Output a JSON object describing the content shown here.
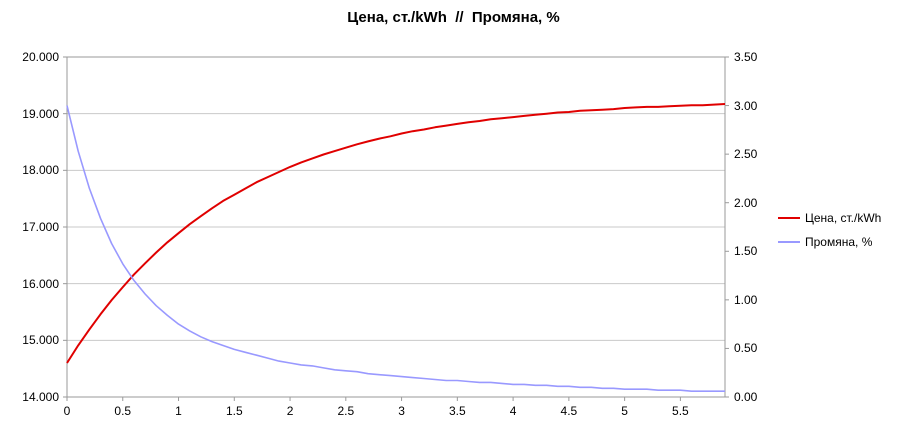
{
  "chart_data": {
    "type": "line",
    "title": "Цена, ст./kWh  //  Промяна, %",
    "grid": true,
    "legend_position": "right",
    "colors": {
      "grid": "#c9c9c9",
      "axis": "#9a9a9a",
      "background": "#ffffff",
      "text": "#000000"
    },
    "x": [
      0,
      0.1,
      0.2,
      0.3,
      0.4,
      0.5,
      0.6,
      0.7,
      0.8,
      0.9,
      1,
      1.1,
      1.2,
      1.3,
      1.4,
      1.5,
      1.6,
      1.7,
      1.8,
      1.9,
      2,
      2.1,
      2.2,
      2.3,
      2.4,
      2.5,
      2.6,
      2.7,
      2.8,
      2.9,
      3,
      3.1,
      3.2,
      3.3,
      3.4,
      3.5,
      3.6,
      3.7,
      3.8,
      3.9,
      4,
      4.1,
      4.2,
      4.3,
      4.4,
      4.5,
      4.6,
      4.7,
      4.8,
      4.9,
      5,
      5.1,
      5.2,
      5.3,
      5.4,
      5.5,
      5.6,
      5.7,
      5.8,
      5.9
    ],
    "series": [
      {
        "id": "price",
        "name": "Цена, ст./kWh",
        "axis": "left",
        "color": "#e00000",
        "values": [
          14.6,
          14.91,
          15.19,
          15.46,
          15.71,
          15.94,
          16.16,
          16.36,
          16.55,
          16.73,
          16.89,
          17.05,
          17.19,
          17.33,
          17.46,
          17.57,
          17.68,
          17.79,
          17.88,
          17.97,
          18.06,
          18.14,
          18.21,
          18.28,
          18.34,
          18.4,
          18.46,
          18.51,
          18.56,
          18.6,
          18.65,
          18.69,
          18.72,
          18.76,
          18.79,
          18.82,
          18.85,
          18.87,
          18.9,
          18.92,
          18.94,
          18.96,
          18.98,
          19.0,
          19.02,
          19.03,
          19.05,
          19.06,
          19.07,
          19.08,
          19.1,
          19.11,
          19.12,
          19.12,
          19.13,
          19.14,
          19.15,
          19.15,
          19.16,
          19.17
        ]
      },
      {
        "id": "change",
        "name": "Промяна, %",
        "axis": "right",
        "color": "#9999ff",
        "values": [
          3.0,
          2.53,
          2.15,
          1.84,
          1.58,
          1.37,
          1.2,
          1.06,
          0.94,
          0.84,
          0.75,
          0.68,
          0.62,
          0.57,
          0.53,
          0.49,
          0.46,
          0.43,
          0.4,
          0.37,
          0.35,
          0.33,
          0.32,
          0.3,
          0.28,
          0.27,
          0.26,
          0.24,
          0.23,
          0.22,
          0.21,
          0.2,
          0.19,
          0.18,
          0.17,
          0.17,
          0.16,
          0.15,
          0.15,
          0.14,
          0.13,
          0.13,
          0.12,
          0.12,
          0.11,
          0.11,
          0.1,
          0.1,
          0.09,
          0.09,
          0.08,
          0.08,
          0.08,
          0.07,
          0.07,
          0.07,
          0.06,
          0.06,
          0.06,
          0.06
        ]
      }
    ],
    "left_axis": {
      "min": 14,
      "max": 20,
      "ticks": [
        14,
        15,
        16,
        17,
        18,
        19,
        20
      ],
      "labels": [
        "14.000",
        "15.000",
        "16.000",
        "17.000",
        "18.000",
        "19.000",
        "20.000"
      ]
    },
    "right_axis": {
      "min": 0,
      "max": 3.5,
      "ticks": [
        0,
        0.5,
        1,
        1.5,
        2,
        2.5,
        3,
        3.5
      ],
      "labels": [
        "0.00",
        "0.50",
        "1.00",
        "1.50",
        "2.00",
        "2.50",
        "3.00",
        "3.50"
      ]
    },
    "x_axis": {
      "min": 0,
      "max": 5.9,
      "ticks": [
        0,
        0.5,
        1,
        1.5,
        2,
        2.5,
        3,
        3.5,
        4,
        4.5,
        5,
        5.5
      ],
      "labels": [
        "0",
        "0.5",
        "1",
        "1.5",
        "2",
        "2.5",
        "3",
        "3.5",
        "4",
        "4.5",
        "5",
        "5.5"
      ]
    }
  }
}
